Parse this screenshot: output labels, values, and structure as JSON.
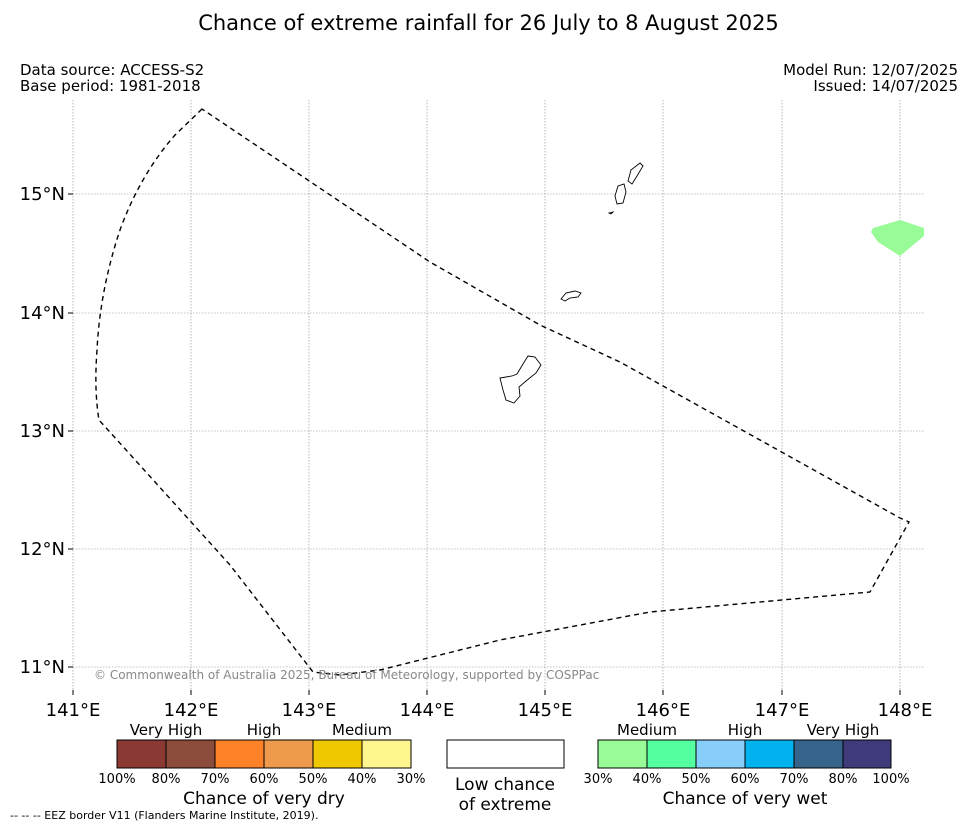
{
  "title": "Chance of extreme rainfall for 26 July to 8 August 2025",
  "data_source": "Data source: ACCESS-S2",
  "base_period": "Base period: 1981-2018",
  "model_run": "Model Run: 12/07/2025",
  "issued": "Issued: 14/07/2025",
  "map": {
    "lon_ticks": [
      "141°E",
      "142°E",
      "143°E",
      "144°E",
      "145°E",
      "146°E",
      "147°E",
      "148°E"
    ],
    "lat_ticks": [
      "15°N",
      "14°N",
      "13°N",
      "12°N",
      "11°N"
    ],
    "copyright": "© Commonwealth of Australia 2025, Bureau of Meteorology, supported by COSPPac",
    "wet_area_color": "#98fb98"
  },
  "legend": {
    "dry": {
      "labels": [
        "Very High",
        "High",
        "Medium"
      ],
      "colors": [
        "#8b3a33",
        "#8b4c3b",
        "#ff8128",
        "#ee9a4d",
        "#f0c800",
        "#fff68f"
      ],
      "ticks": [
        "100%",
        "80%",
        "70%",
        "60%",
        "50%",
        "40%",
        "30%"
      ],
      "caption": "Chance of very dry"
    },
    "low": {
      "caption_line1": "Low chance",
      "caption_line2": "of extreme"
    },
    "wet": {
      "labels": [
        "Medium",
        "High",
        "Very High"
      ],
      "colors": [
        "#98fb98",
        "#54ff9f",
        "#87cefa",
        "#00b2ee",
        "#36648b",
        "#3f3b7b"
      ],
      "ticks": [
        "30%",
        "40%",
        "50%",
        "60%",
        "70%",
        "80%",
        "100%"
      ],
      "caption": "Chance of very wet"
    }
  },
  "footnote": "--  --  -- EEZ border V11 (Flanders Marine Institute, 2019)."
}
